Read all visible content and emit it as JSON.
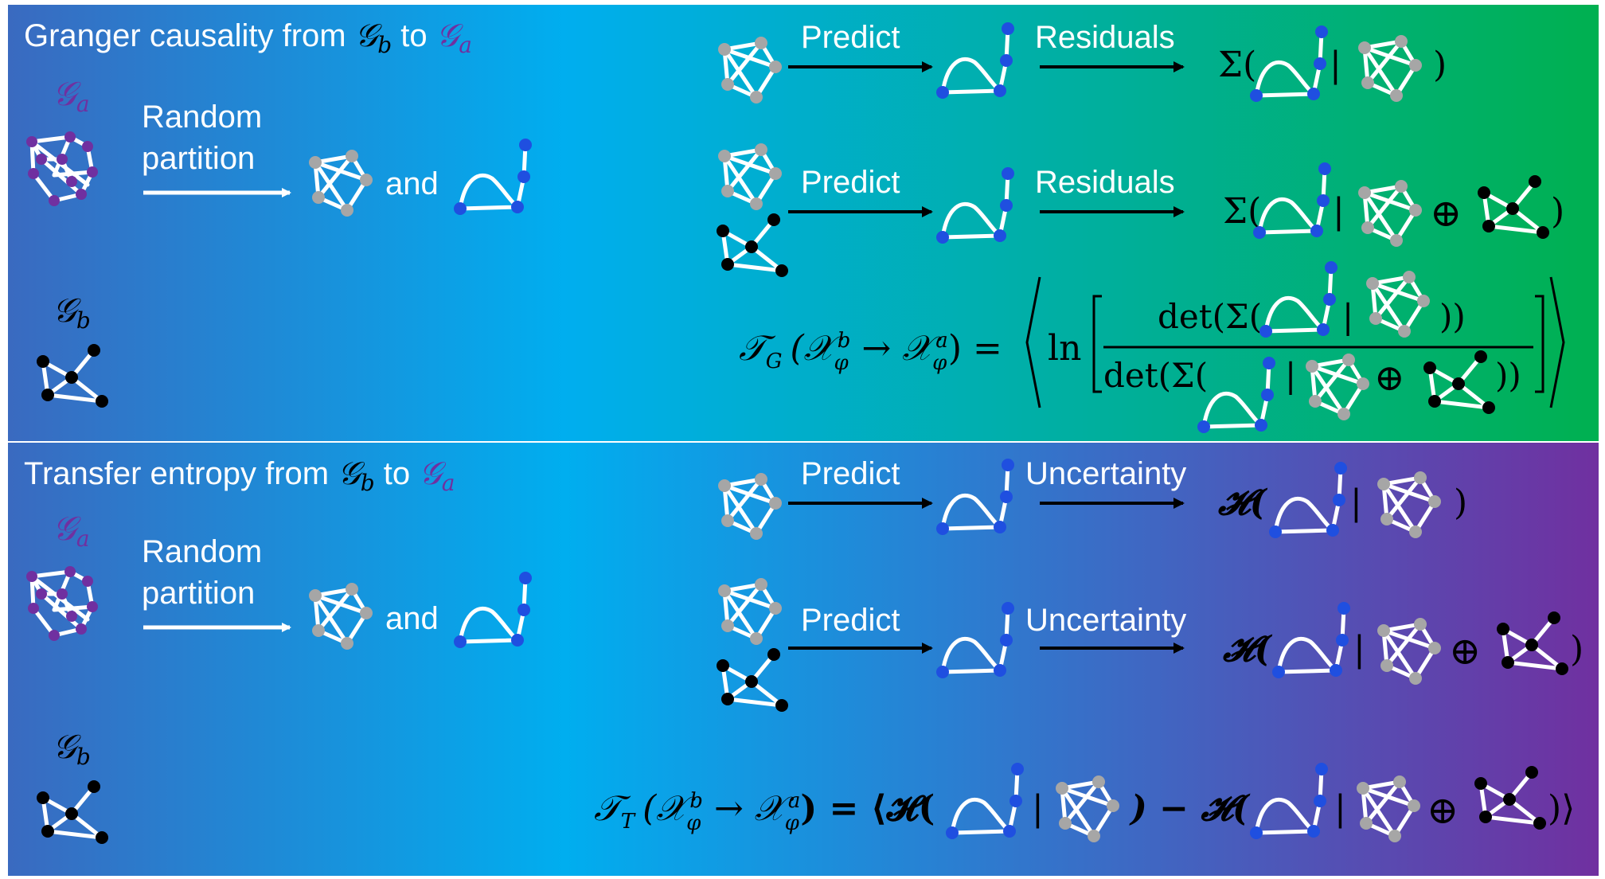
{
  "colors": {
    "top_left": "#3a6ac0",
    "top_mid": "#00aeef",
    "top_right": "#00b050",
    "bottom_left": "#3a6ac0",
    "bottom_mid": "#00aeef",
    "bottom_right": "#7030a0",
    "purple_node": "#7030a0",
    "blue_node": "#1f4fe0",
    "gray_node": "#a6a6a6",
    "black_node": "#000000",
    "edge": "#ffffff"
  },
  "top": {
    "title_prefix": "Granger causality from ",
    "title_from": "𝒢",
    "title_from_sub": "b",
    "title_mid": " to ",
    "title_to": "𝒢",
    "title_to_sub": "a",
    "graph_a_label": "𝒢",
    "graph_a_sub": "a",
    "graph_b_label": "𝒢",
    "graph_b_sub": "b",
    "partition_line1": "Random",
    "partition_line2": "partition",
    "and_label": "and",
    "row1_predict": "Predict",
    "row1_residuals": "Residuals",
    "row2_predict": "Predict",
    "row2_residuals": "Residuals",
    "sigma": "Σ(",
    "bar": "|",
    "close_paren": ")",
    "oplus": "⊕",
    "formula_lhs": "𝒯",
    "formula_lhs_sub": "G",
    "formula_arg": "(𝒳",
    "formula_arg_sub1": "φ",
    "formula_arg_sup1": "b",
    "formula_arrow": " → 𝒳",
    "formula_arg_sub2": "φ",
    "formula_arg_sup2": "a",
    "formula_arg_close": ") =",
    "ln": "ln",
    "det_num_open": "det(Σ(",
    "det_num_close": "))",
    "det_den_open": "det(Σ(",
    "det_den_close": "))"
  },
  "bottom": {
    "title_prefix": "Transfer entropy from ",
    "title_from": "𝒢",
    "title_from_sub": "b",
    "title_mid": " to ",
    "title_to": "𝒢",
    "title_to_sub": "a",
    "graph_a_label": "𝒢",
    "graph_a_sub": "a",
    "graph_b_label": "𝒢",
    "graph_b_sub": "b",
    "partition_line1": "Random",
    "partition_line2": "partition",
    "and_label": "and",
    "row1_predict": "Predict",
    "row1_uncertainty": "Uncertainty",
    "row2_predict": "Predict",
    "row2_uncertainty": "Uncertainty",
    "entropy": "𝓗(",
    "bar": "|",
    "close_paren": ")",
    "oplus": "⊕",
    "formula_lhs": "𝒯",
    "formula_lhs_sub": "T",
    "formula_arg": "(𝒳",
    "formula_arg_sub1": "φ",
    "formula_arg_sup1": "b",
    "formula_arrow": " → 𝒳",
    "formula_arg_sub2": "φ",
    "formula_arg_sup2": "a",
    "formula_arg_close": ") = ⟨𝓗(",
    "minus_entropy": ") − 𝓗(",
    "formula_end": ")⟩"
  }
}
